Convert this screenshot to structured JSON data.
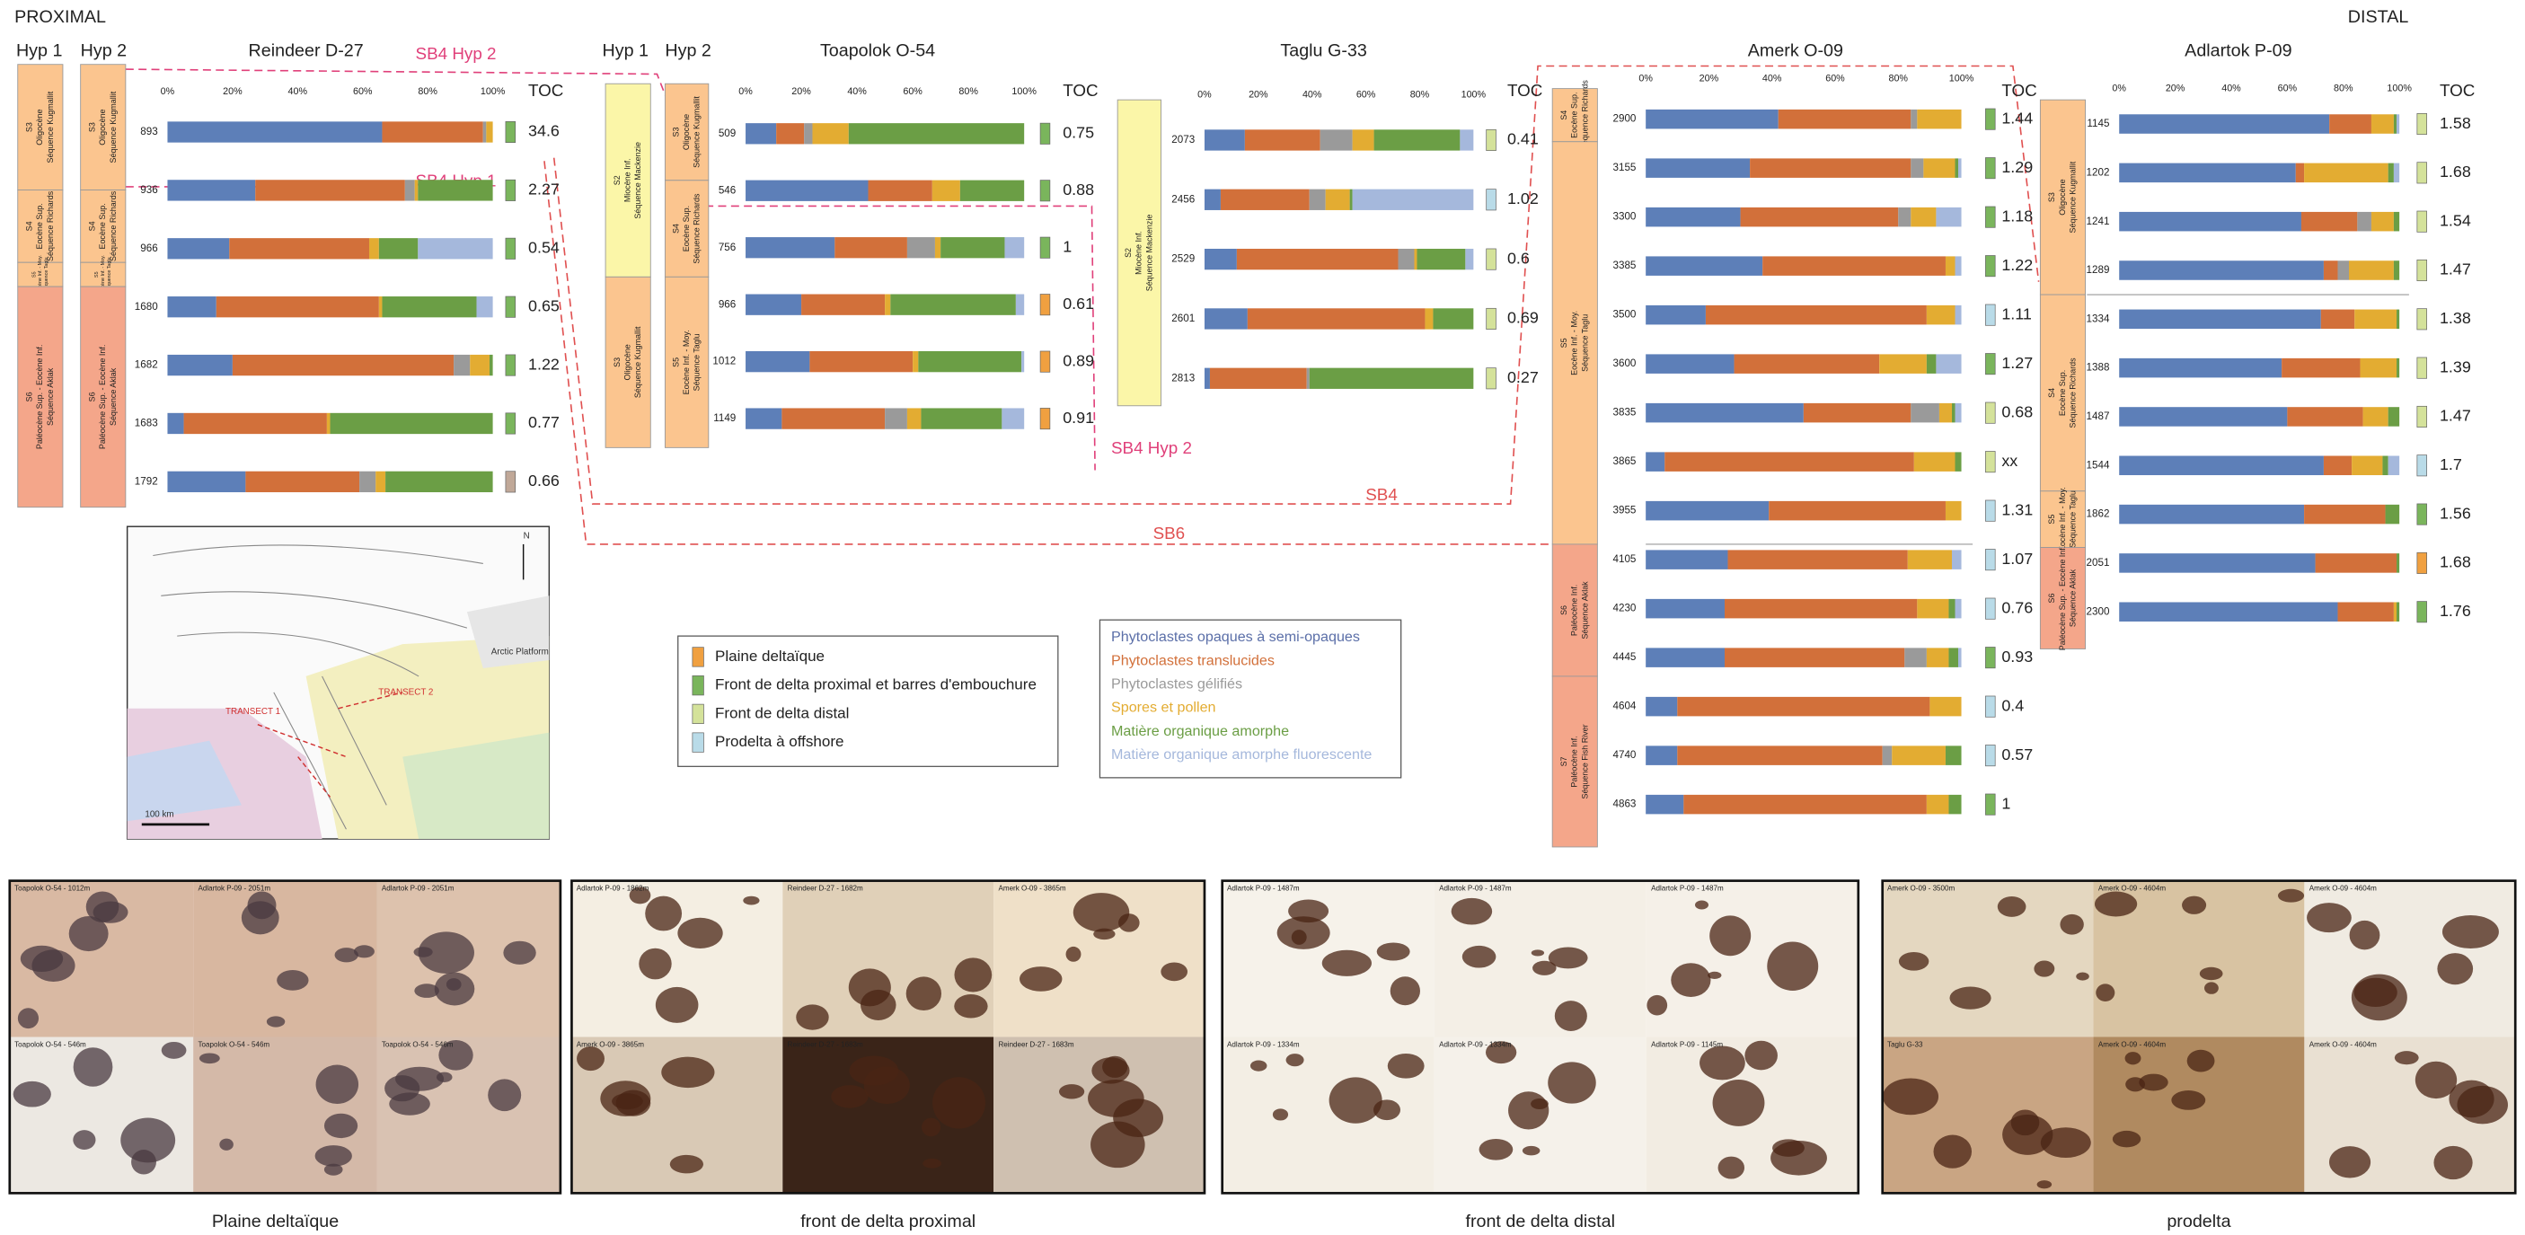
{
  "header": {
    "left": "PROXIMAL",
    "right": "DISTAL"
  },
  "hyp_labels": [
    "Hyp 1",
    "Hyp 2",
    "Hyp 1",
    "Hyp 2"
  ],
  "chart_data": [
    {
      "type": "bar",
      "orientation": "horizontal",
      "stacked": true,
      "title": "Reindeer D-27",
      "categories": [
        "893",
        "936",
        "966",
        "1680",
        "1682",
        "1683",
        "1792"
      ],
      "xlim": [
        0,
        100
      ],
      "xticks": [
        {
          "value": 0,
          "label": "0%"
        },
        {
          "value": 20,
          "label": "20%"
        },
        {
          "value": 40,
          "label": "40%"
        },
        {
          "value": 60,
          "label": "60%"
        },
        {
          "value": 80,
          "label": "80%"
        },
        {
          "value": 100,
          "label": "100%"
        }
      ],
      "toc_title": "TOC",
      "toc": [
        "34.6",
        "2.27",
        "0.54",
        "0.65",
        "1.22",
        "0.77",
        "0.66"
      ],
      "facies": [
        "#7ab55c",
        "#7ab55c",
        "#7ab55c",
        "#7ab55c",
        "#7ab55c",
        "#7ab55c",
        "#c0a898"
      ],
      "series": [
        {
          "color": "#5d7fb8",
          "values": [
            66,
            27,
            19,
            15,
            20,
            5,
            24
          ]
        },
        {
          "color": "#d2703a",
          "values": [
            31,
            46,
            43,
            50,
            68,
            44,
            35
          ]
        },
        {
          "color": "#9a9a9a",
          "values": [
            1,
            3,
            0,
            0,
            5,
            0,
            5
          ]
        },
        {
          "color": "#e3ac32",
          "values": [
            2,
            1,
            3,
            1,
            6,
            1,
            3
          ]
        },
        {
          "color": "#6b9e45",
          "values": [
            0,
            23,
            12,
            29,
            1,
            50,
            33
          ]
        },
        {
          "color": "#a5b8dc",
          "values": [
            0,
            0,
            23,
            5,
            0,
            0,
            0
          ]
        }
      ]
    },
    {
      "type": "bar",
      "orientation": "horizontal",
      "stacked": true,
      "title": "Toapolok O-54",
      "categories": [
        "509",
        "546",
        "756",
        "966",
        "1012",
        "1149"
      ],
      "xlim": [
        0,
        100
      ],
      "xticks": [
        {
          "value": 0,
          "label": "0%"
        },
        {
          "value": 20,
          "label": "20%"
        },
        {
          "value": 40,
          "label": "40%"
        },
        {
          "value": 60,
          "label": "60%"
        },
        {
          "value": 80,
          "label": "80%"
        },
        {
          "value": 100,
          "label": "100%"
        }
      ],
      "toc_title": "TOC",
      "toc": [
        "0.75",
        "0.88",
        "1",
        "0.61",
        "0.89",
        "0.91"
      ],
      "facies": [
        "#7ab55c",
        "#7ab55c",
        "#7ab55c",
        "#f0a040",
        "#f0a040",
        "#f0a040"
      ],
      "series": [
        {
          "color": "#5d7fb8",
          "values": [
            11,
            44,
            32,
            20,
            23,
            13
          ]
        },
        {
          "color": "#d2703a",
          "values": [
            10,
            23,
            26,
            30,
            37,
            37
          ]
        },
        {
          "color": "#9a9a9a",
          "values": [
            3,
            0,
            10,
            0,
            0,
            8
          ]
        },
        {
          "color": "#e3ac32",
          "values": [
            13,
            10,
            2,
            2,
            2,
            5
          ]
        },
        {
          "color": "#6b9e45",
          "values": [
            63,
            23,
            23,
            45,
            37,
            29
          ]
        },
        {
          "color": "#a5b8dc",
          "values": [
            0,
            0,
            7,
            3,
            1,
            8
          ]
        }
      ]
    },
    {
      "type": "bar",
      "orientation": "horizontal",
      "stacked": true,
      "title": "Taglu G-33",
      "categories": [
        "2073",
        "2456",
        "2529",
        "2601",
        "2813"
      ],
      "xlim": [
        0,
        100
      ],
      "xticks": [
        {
          "value": 0,
          "label": "0%"
        },
        {
          "value": 20,
          "label": "20%"
        },
        {
          "value": 40,
          "label": "40%"
        },
        {
          "value": 60,
          "label": "60%"
        },
        {
          "value": 80,
          "label": "80%"
        },
        {
          "value": 100,
          "label": "100%"
        }
      ],
      "toc_title": "TOC",
      "toc": [
        "0.41",
        "1.02",
        "0.6",
        "0.69",
        "0.27"
      ],
      "facies": [
        "#d4e29a",
        "#b9dbe8",
        "#d4e29a",
        "#d4e29a",
        "#d4e29a"
      ],
      "series": [
        {
          "color": "#5d7fb8",
          "values": [
            15,
            6,
            12,
            16,
            2
          ]
        },
        {
          "color": "#d2703a",
          "values": [
            28,
            33,
            60,
            66,
            36
          ]
        },
        {
          "color": "#9a9a9a",
          "values": [
            12,
            6,
            6,
            0,
            1
          ]
        },
        {
          "color": "#e3ac32",
          "values": [
            8,
            9,
            1,
            3,
            0
          ]
        },
        {
          "color": "#6b9e45",
          "values": [
            32,
            1,
            18,
            15,
            61
          ]
        },
        {
          "color": "#a5b8dc",
          "values": [
            5,
            45,
            3,
            0,
            0
          ]
        }
      ]
    },
    {
      "type": "bar",
      "orientation": "horizontal",
      "stacked": true,
      "title": "Amerk O-09",
      "categories": [
        "2900",
        "3155",
        "3300",
        "3385",
        "3500",
        "3600",
        "3835",
        "3865",
        "3955",
        "4105",
        "4230",
        "4445",
        "4604",
        "4740",
        "4863"
      ],
      "xlim": [
        0,
        100
      ],
      "xticks": [
        {
          "value": 0,
          "label": "0%"
        },
        {
          "value": 20,
          "label": "20%"
        },
        {
          "value": 40,
          "label": "40%"
        },
        {
          "value": 60,
          "label": "60%"
        },
        {
          "value": 80,
          "label": "80%"
        },
        {
          "value": 100,
          "label": "100%"
        }
      ],
      "toc_title": "TOC",
      "toc": [
        "1.44",
        "1.29",
        "1.18",
        "1.22",
        "1.11",
        "1.27",
        "0.68",
        "xx",
        "1.31",
        "1.07",
        "0.76",
        "0.93",
        "0.4",
        "0.57",
        "1"
      ],
      "facies": [
        "#7ab55c",
        "#7ab55c",
        "#7ab55c",
        "#7ab55c",
        "#b9dbe8",
        "#7ab55c",
        "#d4e29a",
        "#d4e29a",
        "#b9dbe8",
        "#b9dbe8",
        "#b9dbe8",
        "#7ab55c",
        "#b9dbe8",
        "#b9dbe8",
        "#7ab55c"
      ],
      "series": [
        {
          "color": "#5d7fb8",
          "values": [
            42,
            33,
            30,
            37,
            19,
            28,
            50,
            6,
            39,
            26,
            25,
            25,
            10,
            10,
            12
          ]
        },
        {
          "color": "#d2703a",
          "values": [
            42,
            51,
            50,
            58,
            70,
            46,
            34,
            79,
            56,
            57,
            61,
            57,
            80,
            65,
            77
          ]
        },
        {
          "color": "#9a9a9a",
          "values": [
            2,
            4,
            4,
            0,
            0,
            0,
            9,
            0,
            0,
            0,
            0,
            7,
            0,
            3,
            0
          ]
        },
        {
          "color": "#e3ac32",
          "values": [
            14,
            10,
            8,
            3,
            9,
            15,
            4,
            13,
            5,
            14,
            10,
            7,
            10,
            17,
            7
          ]
        },
        {
          "color": "#6b9e45",
          "values": [
            0,
            1,
            0,
            0,
            0,
            3,
            1,
            2,
            0,
            0,
            2,
            3,
            0,
            5,
            4
          ]
        },
        {
          "color": "#a5b8dc",
          "values": [
            0,
            1,
            8,
            2,
            2,
            8,
            2,
            0,
            0,
            3,
            2,
            1,
            0,
            0,
            0
          ]
        }
      ]
    },
    {
      "type": "bar",
      "orientation": "horizontal",
      "stacked": true,
      "title": "Adlartok P-09",
      "categories": [
        "1145",
        "1202",
        "1241",
        "1289",
        "1334",
        "1388",
        "1487",
        "1544",
        "1862",
        "2051",
        "2300"
      ],
      "xlim": [
        0,
        100
      ],
      "xticks": [
        {
          "value": 0,
          "label": "0%"
        },
        {
          "value": 20,
          "label": "20%"
        },
        {
          "value": 40,
          "label": "40%"
        },
        {
          "value": 60,
          "label": "60%"
        },
        {
          "value": 80,
          "label": "80%"
        },
        {
          "value": 100,
          "label": "100%"
        }
      ],
      "toc_title": "TOC",
      "toc": [
        "1.58",
        "1.68",
        "1.54",
        "1.47",
        "1.38",
        "1.39",
        "1.47",
        "1.7",
        "1.56",
        "1.68",
        "1.76"
      ],
      "facies": [
        "#d4e29a",
        "#d4e29a",
        "#d4e29a",
        "#d4e29a",
        "#d4e29a",
        "#d4e29a",
        "#d4e29a",
        "#b9dbe8",
        "#7ab55c",
        "#f0a040",
        "#7ab55c"
      ],
      "series": [
        {
          "color": "#5d7fb8",
          "values": [
            75,
            63,
            65,
            73,
            72,
            58,
            60,
            73,
            66,
            70,
            78
          ]
        },
        {
          "color": "#d2703a",
          "values": [
            15,
            3,
            20,
            5,
            12,
            28,
            27,
            10,
            29,
            29,
            20
          ]
        },
        {
          "color": "#9a9a9a",
          "values": [
            0,
            0,
            5,
            4,
            0,
            0,
            0,
            0,
            0,
            0,
            0
          ]
        },
        {
          "color": "#e3ac32",
          "values": [
            8,
            30,
            8,
            16,
            15,
            13,
            9,
            11,
            0,
            0,
            1
          ]
        },
        {
          "color": "#6b9e45",
          "values": [
            1,
            2,
            2,
            2,
            1,
            1,
            4,
            2,
            5,
            1,
            1
          ]
        },
        {
          "color": "#a5b8dc",
          "values": [
            1,
            2,
            0,
            0,
            0,
            0,
            0,
            4,
            0,
            0,
            0
          ]
        }
      ]
    }
  ],
  "sequence_columns": [
    {
      "units": [
        {
          "name": "S3",
          "age": "Oligocène",
          "sequence": "Séquence Kugmallit"
        },
        {
          "name": "S4",
          "age": "Eocène Sup.",
          "sequence": "Séquence Richards"
        },
        {
          "name": "S5",
          "age": "Eocène Inf. - Moy.",
          "sequence": "Séquence Taglu"
        },
        {
          "name": "S6",
          "age": "Paléocène Sup. - Eocène Inf.",
          "sequence": "Séquence Aklak"
        }
      ]
    },
    {
      "units": [
        {
          "name": "S3",
          "age": "Oligocène",
          "sequence": "Séquence Kugmallit"
        },
        {
          "name": "S4",
          "age": "Eocène Sup.",
          "sequence": "Séquence Richards"
        },
        {
          "name": "S5",
          "age": "Eocène Inf. - Moy.",
          "sequence": "Séquence Taglu"
        },
        {
          "name": "S6",
          "age": "Paléocène Sup. - Eocène Inf.",
          "sequence": "Séquence Aklak"
        }
      ]
    },
    {
      "units": [
        {
          "name": "S2",
          "age": "Miocène Inf.",
          "sequence": "Séquence Mackenzie"
        },
        {
          "name": "S3",
          "age": "Oligocène",
          "sequence": "Séquence Kugmallit"
        }
      ]
    },
    {
      "units": [
        {
          "name": "S3",
          "age": "Oligocène",
          "sequence": "Séquence Kugmallit"
        },
        {
          "name": "S4",
          "age": "Eocène Sup.",
          "sequence": "Séquence Richards"
        },
        {
          "name": "S5",
          "age": "Eocène Inf. - Moy.",
          "sequence": "Séquence Taglu"
        }
      ]
    },
    {
      "units": [
        {
          "name": "S2",
          "age": "Miocène Inf.",
          "sequence": "Séquence Mackenzie"
        }
      ]
    },
    {
      "units": [
        {
          "name": "S4",
          "age": "Eocène Sup.",
          "sequence": "Séquence Richards"
        },
        {
          "name": "S5",
          "age": "Eocène Inf. - Moy.",
          "sequence": "Séquence Taglu"
        },
        {
          "name": "S6",
          "age": "Paléocène Inf.",
          "sequence": "Séquence Aklak"
        },
        {
          "name": "S7",
          "age": "Paléocène Inf.",
          "sequence": "Séquence Fish River"
        }
      ]
    },
    {
      "units": [
        {
          "name": "S3",
          "age": "Oligocène",
          "sequence": "Séquence Kugmallit"
        },
        {
          "name": "S4",
          "age": "Eocène Sup.",
          "sequence": "Séquence Richards"
        },
        {
          "name": "S5",
          "age": "Eocène Inf. - Moy.",
          "sequence": "Séquence Taglu"
        },
        {
          "name": "S6",
          "age": "Paléocène Sup. - Eocène Inf.",
          "sequence": "Séquence Aklak"
        }
      ]
    }
  ],
  "annotations": [
    "SB4 Hyp 2",
    "SB4 Hyp 1",
    "SB4 Hyp 2",
    "SB4",
    "SB6"
  ],
  "facies_legend": [
    {
      "label": "Plaine deltaïque",
      "color": "#f0a040"
    },
    {
      "label": "Front de delta proximal et barres d'embouchure",
      "color": "#7ab55c"
    },
    {
      "label": "Front de delta distal",
      "color": "#d4e29a"
    },
    {
      "label": "Prodelta à offshore",
      "color": "#b9dbe8"
    }
  ],
  "components_legend": [
    {
      "label": "Phytoclastes opaques à semi-opaques",
      "color": "#5b6fa8"
    },
    {
      "label": "Phytoclastes translucides",
      "color": "#d2703a"
    },
    {
      "label": "Phytoclastes gélifiés",
      "color": "#9a9a9a"
    },
    {
      "label": "Spores et pollen",
      "color": "#e3ac32"
    },
    {
      "label": "Matière organique amorphe",
      "color": "#6b9e45"
    },
    {
      "label": "Matière organique amorphe fluorescente",
      "color": "#a5b8dc"
    }
  ],
  "map": {
    "labels": [
      "TRANSECT 1",
      "TRANSECT 2",
      "Arctic Platform",
      "100 km",
      "N"
    ]
  },
  "photo_panels": [
    {
      "caption": "Plaine deltaïque",
      "tiles": [
        "Toapolok O-54 - 1012m",
        "Adlartok P-09 - 2051m",
        "Adlartok P-09 - 2051m",
        "Toapolok O-54 - 546m",
        "Toapolok O-54 - 546m",
        "Toapolok O-54 - 546m"
      ]
    },
    {
      "caption": "front de delta proximal",
      "tiles": [
        "Adlartok P-09 - 1862m",
        "Reindeer D-27 - 1682m",
        "Amerk O-09 - 3865m",
        "Amerk O-09 - 3865m",
        "Reindeer D-27 - 1683m",
        "Reindeer D-27 - 1683m"
      ]
    },
    {
      "caption": "front de delta distal",
      "tiles": [
        "Adlartok P-09 - 1487m",
        "Adlartok P-09 - 1487m",
        "Adlartok P-09 - 1487m",
        "Adlartok P-09 - 1334m",
        "Adlartok P-09 - 1334m",
        "Adlartok P-09 - 1145m"
      ]
    },
    {
      "caption": "prodelta",
      "tiles": [
        "Amerk O-09 - 3500m",
        "Amerk O-09 - 4604m",
        "Amerk O-09 - 4604m",
        "Taglu G-33",
        "Amerk O-09 - 4604m",
        "Amerk O-09 - 4604m"
      ]
    }
  ]
}
